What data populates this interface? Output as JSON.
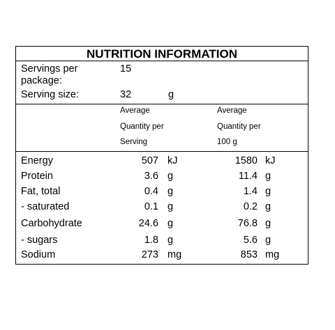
{
  "title": "NUTRITION INFORMATION",
  "servings_per_package": {
    "label_line1": "Servings per",
    "label_line2": "package:",
    "value": "15"
  },
  "serving_size": {
    "label": "Serving size:",
    "value": "32",
    "unit": "g"
  },
  "columns": {
    "per_serving": [
      "Average",
      "Quantity per",
      "Serving"
    ],
    "per_100g": [
      "Average",
      "Quantity per",
      "100 g"
    ]
  },
  "rows": [
    {
      "name": "Energy",
      "serving": "507",
      "serving_unit": "kJ",
      "per100": "1580",
      "per100_unit": "kJ"
    },
    {
      "name": "Protein",
      "serving": "3.6",
      "serving_unit": "g",
      "per100": "11.4",
      "per100_unit": "g"
    },
    {
      "name": "Fat, total",
      "serving": "0.4",
      "serving_unit": "g",
      "per100": "1.4",
      "per100_unit": "g"
    },
    {
      "name": "- saturated",
      "serving": "0.1",
      "serving_unit": "g",
      "per100": "0.2",
      "per100_unit": "g"
    },
    {
      "name": "Carbohydrate",
      "serving": "24.6",
      "serving_unit": "g",
      "per100": "76.8",
      "per100_unit": "g"
    },
    {
      "name": "- sugars",
      "serving": "1.8",
      "serving_unit": "g",
      "per100": "5.6",
      "per100_unit": "g"
    },
    {
      "name": "Sodium",
      "serving": "273",
      "serving_unit": "mg",
      "per100": "853",
      "per100_unit": "mg"
    }
  ]
}
